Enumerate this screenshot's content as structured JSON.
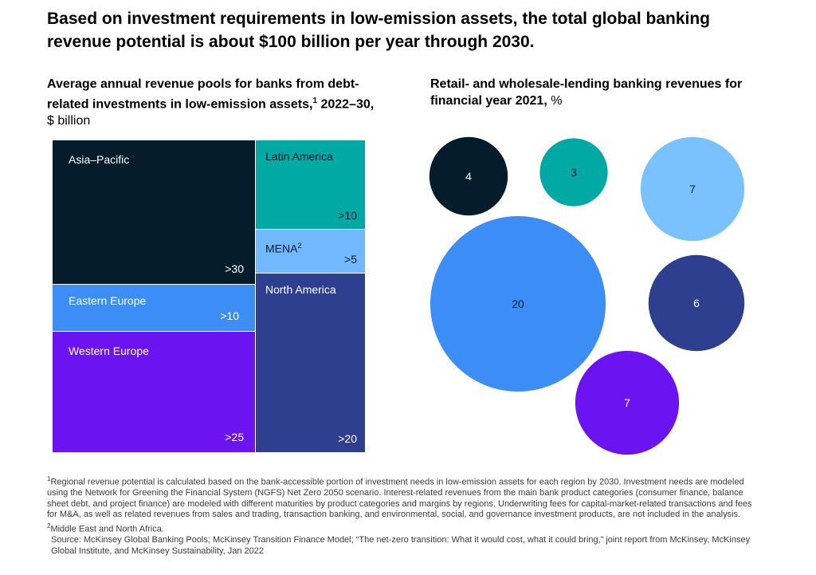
{
  "headline": "Based on investment requirements in low-emission assets, the total global banking revenue potential is about $100 billion per year through 2030.",
  "left_chart": {
    "title_bold": "Average annual revenue pools for banks from debt-related investments in low-emission assets,",
    "title_sup": "1",
    "title_bold2": " 2022–30,",
    "title_unit": " $ billion"
  },
  "right_chart": {
    "title_bold": "Retail- and wholesale-lending banking revenues for financial year 2021,",
    "title_unit": " %"
  },
  "chart_data": [
    {
      "type": "treemap",
      "title": "Average annual revenue pools for banks from debt-related investments in low-emission assets, 2022–30, $ billion",
      "regions": [
        {
          "name": "Asia–Pacific",
          "label": ">30",
          "value": 30,
          "color": "#051c2c"
        },
        {
          "name": "Latin America",
          "label": ">10",
          "value": 10,
          "color": "#00a9a4"
        },
        {
          "name": "MENA",
          "sup": "2",
          "label": ">5",
          "value": 5,
          "color": "#72b8ff"
        },
        {
          "name": "North America",
          "label": ">20",
          "value": 20,
          "color": "#2e3f8f"
        },
        {
          "name": "Eastern Europe",
          "label": ">10",
          "value": 10,
          "color": "#3c8ef6"
        },
        {
          "name": "Western Europe",
          "label": ">25",
          "value": 25,
          "color": "#6c13f2"
        }
      ]
    },
    {
      "type": "bubble",
      "title": "Retail- and wholesale-lending banking revenues for financial year 2021, %",
      "bubbles": [
        {
          "label": "4",
          "value": 4,
          "color": "#051c2c",
          "text_color": "#ffffff"
        },
        {
          "label": "3",
          "value": 3,
          "color": "#00a9a4",
          "text_color": "#051c2c"
        },
        {
          "label": "7",
          "value": 7,
          "color": "#7ac1ff",
          "text_color": "#051c2c"
        },
        {
          "label": "20",
          "value": 20,
          "color": "#3c8ef6",
          "text_color": "#051c2c"
        },
        {
          "label": "6",
          "value": 6,
          "color": "#2e3f8f",
          "text_color": "#ffffff"
        },
        {
          "label": "7",
          "value": 7,
          "color": "#6c13f2",
          "text_color": "#ffffff"
        }
      ]
    }
  ],
  "footnotes": {
    "fn1_sup": "1",
    "fn1": "Regional revenue potential is calculated based on the bank-accessible portion of investment needs in low-emission assets for each region by 2030. Investment needs are modeled using the Network for Greening the Financial System (NGFS) Net Zero 2050 scenario. Interest-related revenues from the main bank product categories (consumer finance, balance sheet debt, and project finance) are modeled with different maturities by product categories and margins by regions. Underwriting fees for capital-market-related transactions and fees for M&A, as well as related revenues from sales and trading, transaction banking, and environmental, social, and governance investment products, are not included in the analysis.",
    "fn2_sup": "2",
    "fn2": "Middle East and North Africa.",
    "source": "Source: McKinsey Global Banking Pools; McKinsey Transition Finance Model; “The net-zero transition: What it would cost, what it could bring,” joint report from McKinsey, McKinsey Global Institute, and McKinsey Sustainability, Jan 2022"
  }
}
